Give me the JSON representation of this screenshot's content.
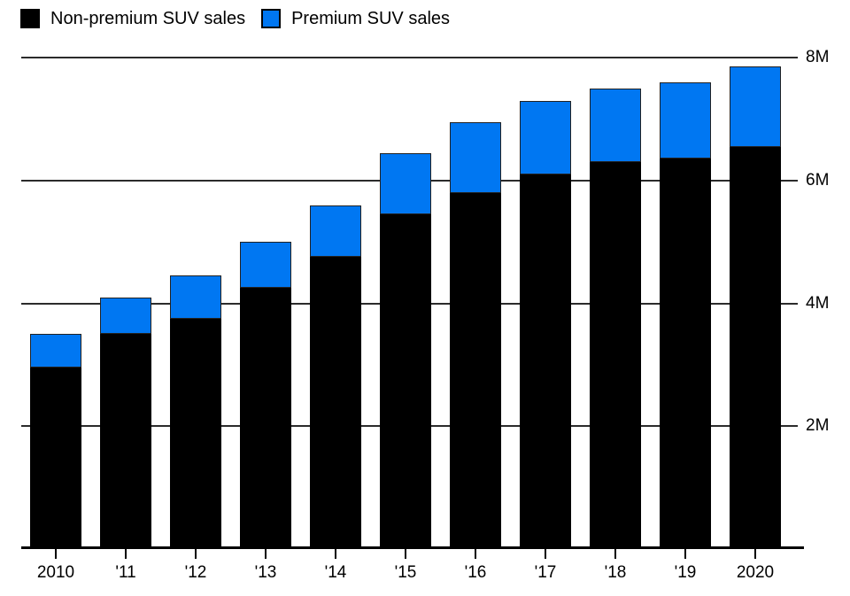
{
  "legend": {
    "items": [
      {
        "label": "Non-premium SUV sales",
        "color": "#000000"
      },
      {
        "label": "Premium SUV sales",
        "color": "#0077f2"
      }
    ]
  },
  "colors": {
    "non_premium": "#000000",
    "premium": "#0077f2",
    "gridline": "#2b2b2b",
    "axis": "#000000",
    "text": "#000000",
    "background": "#ffffff"
  },
  "chart_data": {
    "type": "bar",
    "stacked": true,
    "title": "",
    "xlabel": "",
    "ylabel": "",
    "unit": "M",
    "categories": [
      "2010",
      "'11",
      "'12",
      "'13",
      "'14",
      "'15",
      "'16",
      "'17",
      "'18",
      "'19",
      "2020"
    ],
    "series": [
      {
        "name": "Non-premium SUV sales",
        "color": "#000000",
        "values": [
          2.95,
          3.5,
          3.75,
          4.25,
          4.75,
          5.45,
          5.8,
          6.1,
          6.3,
          6.35,
          6.55
        ]
      },
      {
        "name": "Premium SUV sales",
        "color": "#0077f2",
        "values": [
          0.55,
          0.6,
          0.7,
          0.75,
          0.85,
          1.0,
          1.15,
          1.2,
          1.2,
          1.25,
          1.3
        ]
      }
    ],
    "totals": [
      3.5,
      4.1,
      4.45,
      5.0,
      5.6,
      6.45,
      6.95,
      7.3,
      7.5,
      7.6,
      7.85
    ],
    "ylim": [
      0,
      8
    ],
    "yticks": [
      {
        "value": 2,
        "label": "2M"
      },
      {
        "value": 4,
        "label": "4M"
      },
      {
        "value": 6,
        "label": "6M"
      },
      {
        "value": 8,
        "label": "8M"
      }
    ],
    "ytick_side": "right",
    "grid": true,
    "legend_position": "top-left"
  }
}
